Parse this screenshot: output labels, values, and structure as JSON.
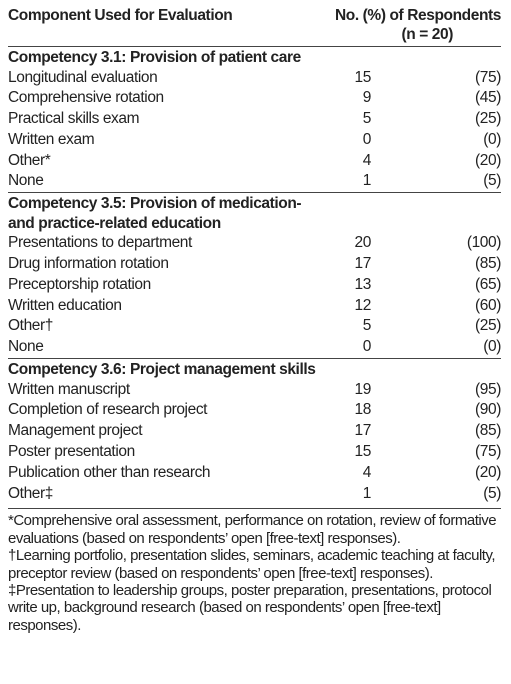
{
  "header": {
    "component": "Component Used for Evaluation",
    "respondents_line1": "No. (%) of Respondents",
    "respondents_line2": "(n = 20)"
  },
  "sections": [
    {
      "title_lines": [
        "Competency 3.1: Provision of patient care"
      ],
      "rows": [
        {
          "label": "Longitudinal evaluation",
          "n": 15,
          "pct": "(75)"
        },
        {
          "label": "Comprehensive rotation",
          "n": 9,
          "pct": "(45)"
        },
        {
          "label": "Practical skills exam",
          "n": 5,
          "pct": "(25)"
        },
        {
          "label": "Written exam",
          "n": 0,
          "pct": "(0)"
        },
        {
          "label": "Other*",
          "n": 4,
          "pct": "(20)"
        },
        {
          "label": "None",
          "n": 1,
          "pct": "(5)"
        }
      ]
    },
    {
      "title_lines": [
        "Competency 3.5: Provision of medication-",
        "and practice-related education"
      ],
      "rows": [
        {
          "label": "Presentations to department",
          "n": 20,
          "pct": "(100)"
        },
        {
          "label": "Drug information rotation",
          "n": 17,
          "pct": "(85)"
        },
        {
          "label": "Preceptorship rotation",
          "n": 13,
          "pct": "(65)"
        },
        {
          "label": "Written education",
          "n": 12,
          "pct": "(60)"
        },
        {
          "label": "Other†",
          "n": 5,
          "pct": "(25)"
        },
        {
          "label": "None",
          "n": 0,
          "pct": "(0)"
        }
      ]
    },
    {
      "title_lines": [
        "Competency 3.6: Project management skills"
      ],
      "rows": [
        {
          "label": "Written manuscript",
          "n": 19,
          "pct": "(95)"
        },
        {
          "label": "Completion of research project",
          "n": 18,
          "pct": "(90)"
        },
        {
          "label": "Management project",
          "n": 17,
          "pct": "(85)"
        },
        {
          "label": "Poster presentation",
          "n": 15,
          "pct": "(75)"
        },
        {
          "label": "Publication other than research",
          "n": 4,
          "pct": "(20)"
        },
        {
          "label": "Other‡",
          "n": 1,
          "pct": "(5)"
        }
      ]
    }
  ],
  "footnotes": [
    "*Comprehensive oral assessment, performance on rotation, review of formative evaluations (based on respondents’ open [free-text] responses).",
    "†Learning portfolio, presentation slides, seminars, academic teaching at faculty, preceptor review (based on respondents’ open [free-text] responses).",
    "‡Presentation to leadership groups, poster preparation, presentations, protocol write up, background research (based on respondents’ open [free-text] responses)."
  ]
}
